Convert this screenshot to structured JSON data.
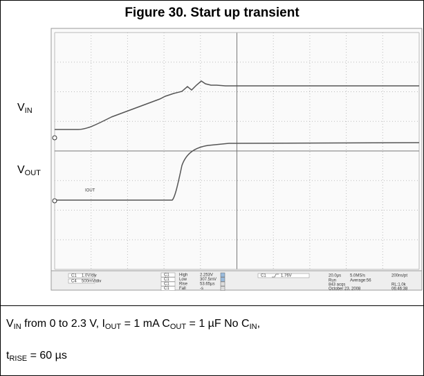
{
  "title": "Figure 30. Start up transient",
  "scope": {
    "labels": [
      [
        {
          "text": "V",
          "sub": false
        },
        {
          "text": "IN",
          "sub": true
        }
      ],
      [
        {
          "text": "V",
          "sub": false
        },
        {
          "text": "OUT",
          "sub": true
        }
      ]
    ],
    "trace_label": "IOUT",
    "readouts": {
      "channels": [
        "1.0V/div",
        "500mV/div"
      ],
      "channel_ids": [
        "C1",
        "C4",
        "C1",
        "C1",
        "C1",
        "C1",
        "C1"
      ],
      "measure_names": [
        "High",
        "Low",
        "Rise",
        "Fall"
      ],
      "measure_values": [
        "2.253V",
        "307.5mV",
        "53.65µs",
        "-s"
      ],
      "trigger": "1.76V",
      "timebase": [
        "20.0µs",
        "5.0MS/s",
        "200ns/pt"
      ],
      "acq": [
        "Run",
        "Average:56",
        "843 acqs",
        "RL:1.0k",
        "October 23, 2008",
        "06:46:38"
      ]
    }
  },
  "caption": [
    [
      {
        "text": "V",
        "sub": false
      },
      {
        "text": "IN",
        "sub": true
      },
      {
        "text": " from 0 to 2.3 V, I",
        "sub": false
      },
      {
        "text": "OUT",
        "sub": true
      },
      {
        "text": " = 1 mA C",
        "sub": false
      },
      {
        "text": "OUT",
        "sub": true
      },
      {
        "text": " = 1 µF No C",
        "sub": false
      },
      {
        "text": "IN",
        "sub": true
      },
      {
        "text": ",",
        "sub": false
      }
    ],
    [
      {
        "text": "t",
        "sub": false
      },
      {
        "text": "RISE",
        "sub": true
      },
      {
        "text": " = 60 µs",
        "sub": false
      }
    ]
  ]
}
